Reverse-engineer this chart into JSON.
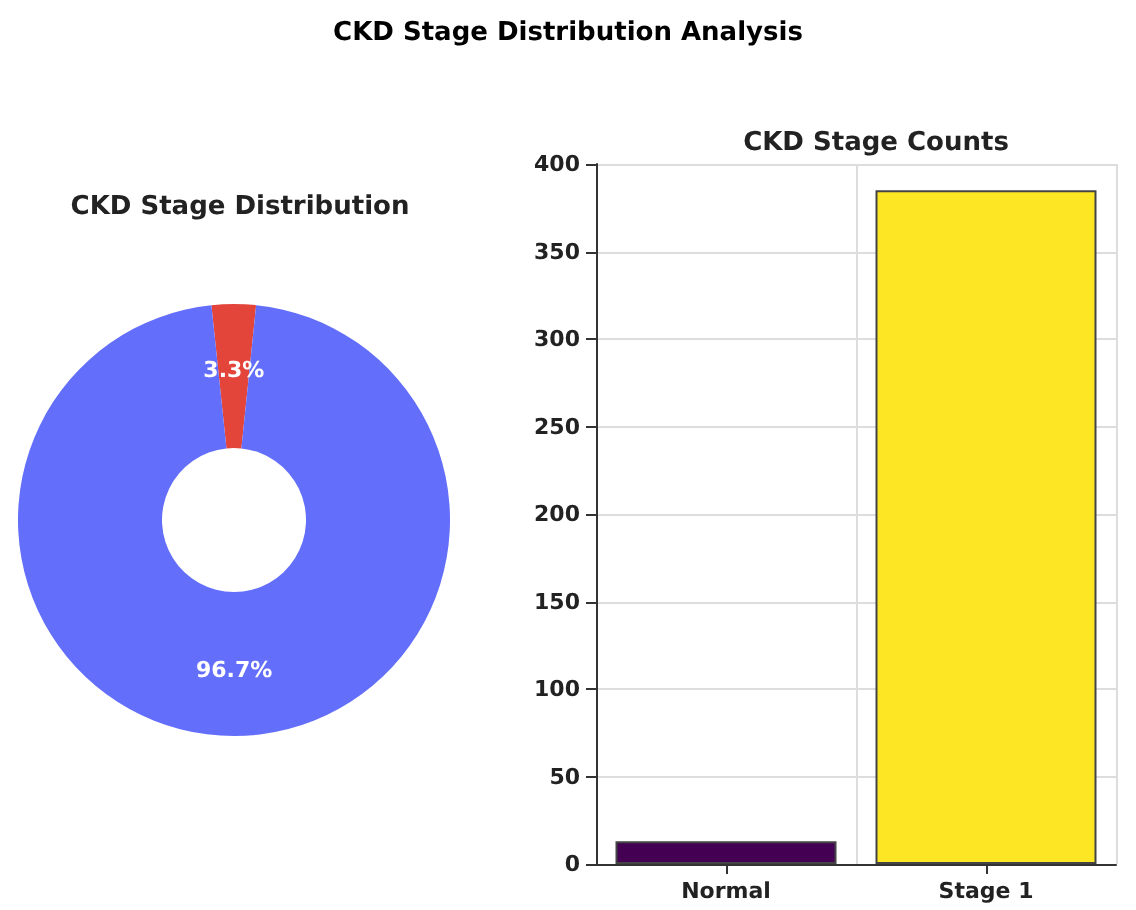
{
  "chart_data": [
    {
      "type": "donut",
      "title": "CKD Stage Distribution",
      "annotations": [
        "CKD Stage Distribution Analysis"
      ],
      "categories": [
        null,
        null
      ],
      "values": [
        3.3,
        96.7
      ],
      "colors": [
        "#e3453a",
        "#636efa"
      ],
      "value_labels": [
        "3.3%",
        "96.7%"
      ]
    },
    {
      "type": "bar",
      "title": "CKD Stage Counts",
      "categories": [
        "Normal",
        "Stage 1"
      ],
      "values": [
        13,
        385
      ],
      "colors": [
        "#440154",
        "#fde725"
      ],
      "ylim": [
        0,
        400
      ],
      "yticks": [
        0,
        50,
        100,
        150,
        200,
        250,
        300,
        350,
        400
      ],
      "grid": true
    }
  ]
}
